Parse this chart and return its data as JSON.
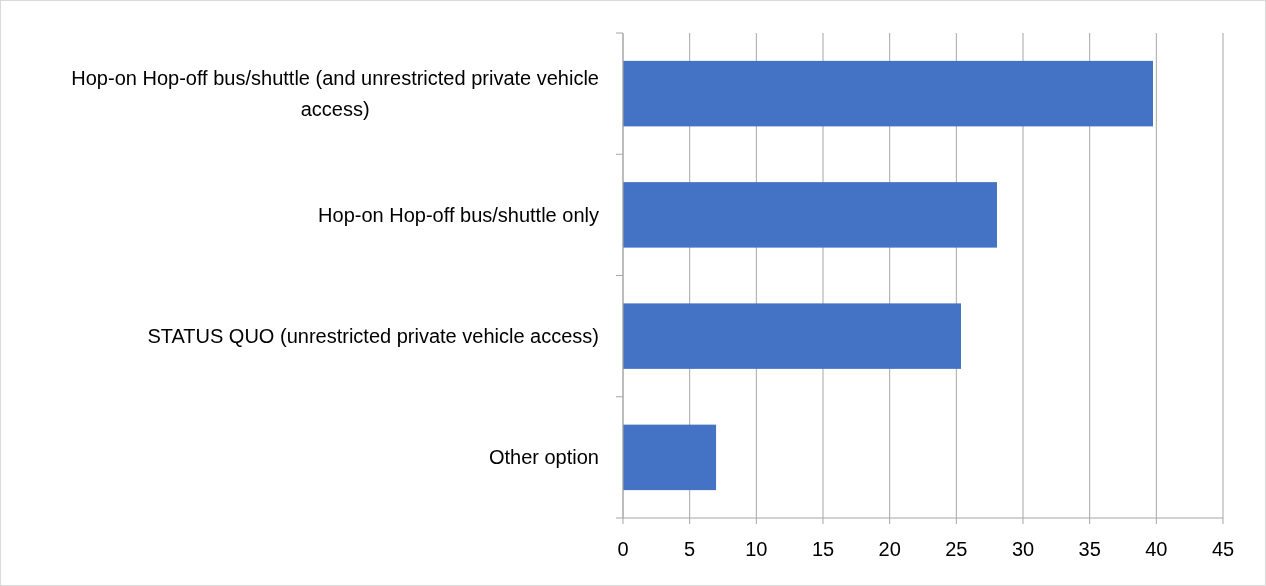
{
  "chart_data": {
    "type": "bar",
    "orientation": "horizontal",
    "categories": [
      "Hop-on Hop-off bus/shuttle (and unrestricted private vehicle access)",
      "Hop-on Hop-off bus/shuttle only",
      "STATUS QUO (unrestricted private vehicle access)",
      "Other option"
    ],
    "values": [
      39.75,
      28.05,
      25.35,
      6.98
    ],
    "color": "#4472c4",
    "xlim": [
      0,
      45
    ],
    "xticks": [
      0,
      5,
      10,
      15,
      20,
      25,
      30,
      35,
      40,
      45
    ],
    "grid": "x"
  }
}
